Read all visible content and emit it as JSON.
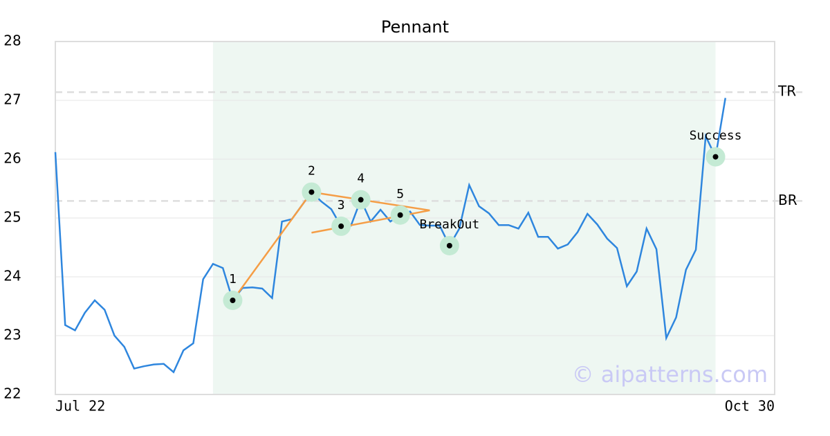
{
  "chart_data": {
    "type": "line",
    "title": "Pennant",
    "categories": [
      "Jul 22",
      null,
      null,
      null,
      null,
      null,
      null,
      null,
      null,
      null,
      null,
      null,
      null,
      null,
      null,
      null,
      null,
      null,
      null,
      null,
      null,
      null,
      null,
      null,
      null,
      null,
      null,
      null,
      null,
      null,
      null,
      null,
      null,
      null,
      null,
      null,
      null,
      null,
      null,
      null,
      null,
      null,
      null,
      null,
      null,
      null,
      null,
      null,
      null,
      null,
      null,
      null,
      null,
      null,
      null,
      null,
      null,
      null,
      null,
      null,
      null,
      null,
      null,
      null,
      null,
      null,
      null,
      null,
      null,
      null,
      null,
      null,
      null,
      "Oct 30"
    ],
    "series": [
      {
        "color": "#2e86de",
        "values": [
          26.12,
          23.18,
          23.09,
          23.39,
          23.6,
          23.44,
          23.0,
          22.81,
          22.44,
          22.48,
          22.51,
          22.52,
          22.38,
          22.75,
          22.87,
          23.96,
          24.22,
          24.15,
          23.6,
          23.81,
          23.82,
          23.8,
          23.64,
          24.94,
          24.98,
          25.21,
          25.44,
          25.28,
          25.15,
          24.86,
          24.87,
          25.31,
          24.94,
          25.14,
          24.94,
          25.05,
          25.11,
          24.88,
          24.87,
          24.87,
          24.53,
          24.82,
          25.56,
          25.2,
          25.08,
          24.88,
          24.88,
          24.82,
          25.09,
          24.68,
          24.68,
          24.48,
          24.55,
          24.76,
          25.07,
          24.89,
          24.65,
          24.49,
          23.84,
          24.09,
          24.82,
          24.47,
          22.96,
          23.31,
          24.12,
          24.46,
          26.39,
          26.04,
          27.04,
          null,
          null,
          null,
          null,
          null
        ]
      }
    ],
    "ylim": [
      22,
      28
    ],
    "yticks": [
      22,
      23,
      24,
      25,
      26,
      27,
      28
    ],
    "grid": true,
    "highlight": {
      "x": [
        16,
        67
      ],
      "color": "#eef7f2"
    },
    "reference_lines": [
      {
        "label": "TR",
        "value": 27.14
      },
      {
        "label": "BR",
        "value": 25.29
      }
    ],
    "pattern_lines": {
      "color": "#f59d45",
      "lines": [
        {
          "x": [
            18,
            26
          ],
          "y": [
            23.6,
            25.44
          ]
        },
        {
          "x": [
            26,
            38
          ],
          "y": [
            25.44,
            25.13
          ]
        },
        {
          "x": [
            26,
            38
          ],
          "y": [
            24.75,
            25.13
          ]
        }
      ]
    },
    "points": [
      {
        "label": "1",
        "x": 18
      },
      {
        "label": "2",
        "x": 26
      },
      {
        "label": "3",
        "x": 29
      },
      {
        "label": "4",
        "x": 31
      },
      {
        "label": "5",
        "x": 35
      },
      {
        "label": "BreakOut",
        "x": 40
      },
      {
        "label": "Success",
        "x": 67
      }
    ],
    "watermark": "© aipatterns.com"
  }
}
